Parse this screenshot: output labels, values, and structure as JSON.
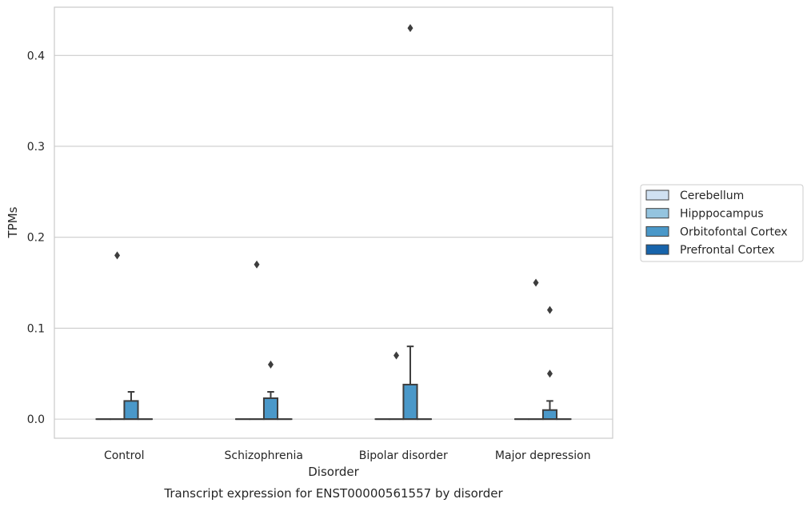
{
  "chart_data": {
    "type": "box",
    "caption": "Transcript expression for ENST00000561557 by disorder",
    "xlabel": "Disorder",
    "ylabel": "TPMs",
    "ylim": [
      -0.021,
      0.453
    ],
    "yticks": [
      "0.0",
      "0.1",
      "0.2",
      "0.3",
      "0.4"
    ],
    "ytick_values": [
      0.0,
      0.1,
      0.2,
      0.3,
      0.4
    ],
    "grid": true,
    "legend_position": "right",
    "categories": [
      "Control",
      "Schizophrenia",
      "Bipolar disorder",
      "Major depression"
    ],
    "series": [
      {
        "name": "Cerebellum",
        "color": "#d0e1f2",
        "boxes": [
          {
            "q1": 0,
            "median": 0,
            "q3": 0,
            "whisker_low": 0,
            "whisker_high": 0,
            "outliers": []
          },
          {
            "q1": 0,
            "median": 0,
            "q3": 0,
            "whisker_low": 0,
            "whisker_high": 0,
            "outliers": []
          },
          {
            "q1": 0,
            "median": 0,
            "q3": 0,
            "whisker_low": 0,
            "whisker_high": 0,
            "outliers": []
          },
          {
            "q1": 0,
            "median": 0,
            "q3": 0,
            "whisker_low": 0,
            "whisker_high": 0,
            "outliers": []
          }
        ]
      },
      {
        "name": "Hipppocampus",
        "color": "#94c4df",
        "boxes": [
          {
            "q1": 0,
            "median": 0,
            "q3": 0,
            "whisker_low": 0,
            "whisker_high": 0,
            "outliers": [
              0.18
            ]
          },
          {
            "q1": 0,
            "median": 0,
            "q3": 0,
            "whisker_low": 0,
            "whisker_high": 0,
            "outliers": [
              0.17
            ]
          },
          {
            "q1": 0,
            "median": 0,
            "q3": 0,
            "whisker_low": 0,
            "whisker_high": 0,
            "outliers": [
              0.07
            ]
          },
          {
            "q1": 0,
            "median": 0,
            "q3": 0,
            "whisker_low": 0,
            "whisker_high": 0,
            "outliers": [
              0.15
            ]
          }
        ]
      },
      {
        "name": "Orbitofontal Cortex",
        "color": "#4a98c9",
        "boxes": [
          {
            "q1": 0,
            "median": 0,
            "q3": 0.02,
            "whisker_low": 0,
            "whisker_high": 0.03,
            "outliers": []
          },
          {
            "q1": 0,
            "median": 0,
            "q3": 0.023,
            "whisker_low": 0,
            "whisker_high": 0.03,
            "outliers": [
              0.06
            ]
          },
          {
            "q1": 0,
            "median": 0,
            "q3": 0.038,
            "whisker_low": 0,
            "whisker_high": 0.08,
            "outliers": [
              0.43
            ]
          },
          {
            "q1": 0,
            "median": 0,
            "q3": 0.01,
            "whisker_low": 0,
            "whisker_high": 0.02,
            "outliers": [
              0.12,
              0.05
            ]
          }
        ]
      },
      {
        "name": "Prefrontal Cortex",
        "color": "#1764ab",
        "boxes": [
          {
            "q1": 0,
            "median": 0,
            "q3": 0,
            "whisker_low": 0,
            "whisker_high": 0,
            "outliers": []
          },
          {
            "q1": 0,
            "median": 0,
            "q3": 0,
            "whisker_low": 0,
            "whisker_high": 0,
            "outliers": []
          },
          {
            "q1": 0,
            "median": 0,
            "q3": 0,
            "whisker_low": 0,
            "whisker_high": 0,
            "outliers": []
          },
          {
            "q1": 0,
            "median": 0,
            "q3": 0,
            "whisker_low": 0,
            "whisker_high": 0,
            "outliers": []
          }
        ]
      }
    ]
  }
}
